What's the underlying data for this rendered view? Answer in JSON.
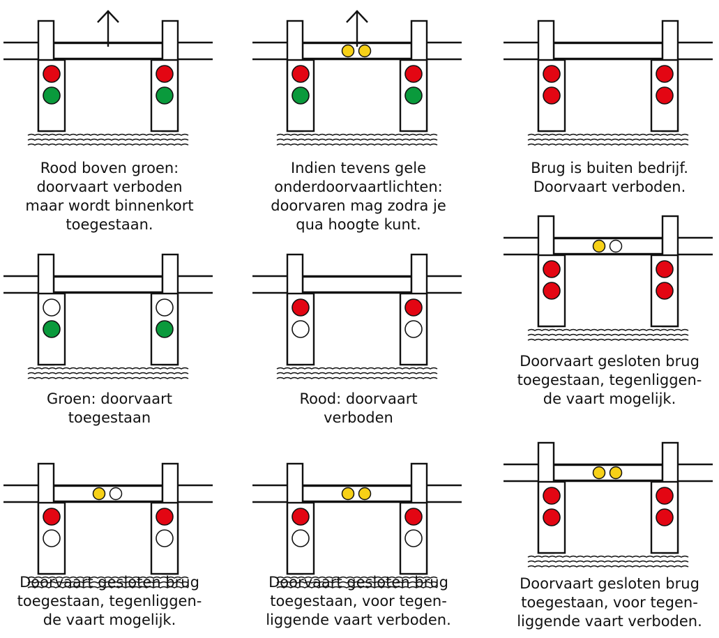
{
  "colors": {
    "red": "#e30613",
    "green": "#0a9a3c",
    "yellow": "#f7d117",
    "off": "#ffffff",
    "stroke": "#111111"
  },
  "panels": [
    {
      "id": "rood-boven-groen",
      "bridge_open": true,
      "arrow": true,
      "deck_lights": [],
      "pillar_lights": [
        "red",
        "green"
      ],
      "caption": [
        "Rood boven groen:",
        "doorvaart verboden",
        "maar wordt binnenkort",
        "toegestaan."
      ]
    },
    {
      "id": "gele-onderdoorvaartlichten",
      "bridge_open": true,
      "arrow": true,
      "deck_lights": [
        "yellow",
        "yellow"
      ],
      "pillar_lights": [
        "red",
        "green"
      ],
      "caption": [
        "Indien tevens gele",
        "onderdoorvaartlichten:",
        "doorvaren mag zodra je",
        "qua hoogte kunt."
      ]
    },
    {
      "id": "buiten-bedrijf",
      "bridge_open": false,
      "arrow": false,
      "deck_lights": [],
      "pillar_lights": [
        "red",
        "red"
      ],
      "caption": [
        "Brug is buiten bedrijf.",
        "Doorvaart verboden."
      ]
    },
    {
      "id": "groen",
      "bridge_open": true,
      "arrow": false,
      "deck_lights": [],
      "pillar_lights": [
        "off",
        "green"
      ],
      "caption": [
        "Groen: doorvaart",
        "toegestaan"
      ]
    },
    {
      "id": "rood",
      "bridge_open": false,
      "arrow": false,
      "deck_lights": [],
      "pillar_lights": [
        "red",
        "off"
      ],
      "caption": [
        "Rood: doorvaart",
        "verboden"
      ]
    },
    {
      "id": "gesloten-rood-rood-tegenligger-mogelijk",
      "bridge_open": true,
      "arrow": false,
      "deck_lights": [
        "yellow",
        "off"
      ],
      "pillar_lights": [
        "red",
        "red"
      ],
      "caption": [
        "Doorvaart gesloten brug",
        "toegestaan, tegenliggen-",
        "de vaart mogelijk."
      ]
    },
    {
      "id": "gesloten-tegenligger-mogelijk",
      "bridge_open": true,
      "arrow": false,
      "deck_lights": [
        "yellow",
        "off"
      ],
      "pillar_lights": [
        "red",
        "off"
      ],
      "caption": [
        "Doorvaart gesloten brug",
        "toegestaan, tegenliggen-",
        "de vaart mogelijk."
      ]
    },
    {
      "id": "gesloten-tegenligger-verboden",
      "bridge_open": true,
      "arrow": false,
      "deck_lights": [
        "yellow",
        "yellow"
      ],
      "pillar_lights": [
        "red",
        "off"
      ],
      "caption": [
        "Doorvaart gesloten brug",
        "toegestaan, voor tegen-",
        "liggende vaart verboden."
      ]
    },
    {
      "id": "gesloten-rood-rood-tegenligger-verboden",
      "bridge_open": true,
      "arrow": false,
      "deck_lights": [
        "yellow",
        "yellow"
      ],
      "pillar_lights": [
        "red",
        "red"
      ],
      "caption": [
        "Doorvaart gesloten brug",
        "toegestaan, voor tegen-",
        "liggende vaart verboden."
      ]
    }
  ]
}
